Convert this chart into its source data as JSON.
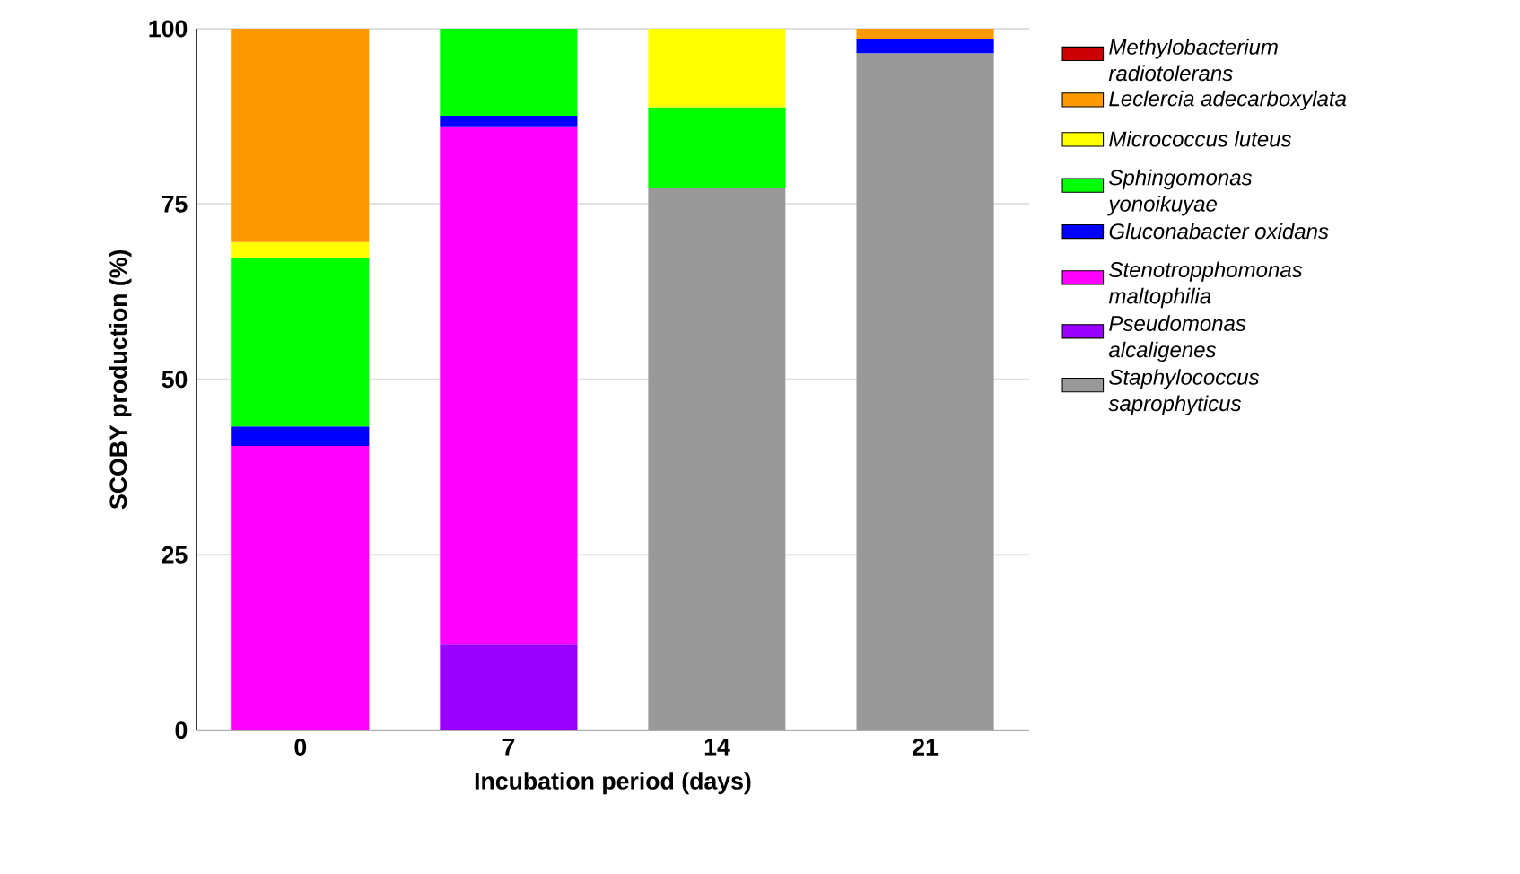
{
  "chart_data": {
    "type": "bar",
    "stacked": true,
    "xlabel": "Incubation period (days)",
    "ylabel": "SCOBY production (%)",
    "categories": [
      "0",
      "7",
      "14",
      "21"
    ],
    "ylim": [
      0,
      100
    ],
    "yticks": [
      0,
      25,
      50,
      75,
      100
    ],
    "grid": "y",
    "legend": "right",
    "series": [
      {
        "name": "Staphylococcus saprophyticus",
        "color": "#999999",
        "values": [
          null,
          null,
          77.3,
          96.5
        ]
      },
      {
        "name": "Pseudomonas alcaligenes",
        "color": "#9900ff",
        "values": [
          null,
          12.2,
          null,
          null
        ]
      },
      {
        "name": "Stenotropphomonas maltophilia",
        "color": "#ff00ff",
        "values": [
          40.5,
          73.9,
          null,
          null
        ]
      },
      {
        "name": "Gluconabacter oxidans",
        "color": "#0000ff",
        "values": [
          2.8,
          1.5,
          null,
          2
        ]
      },
      {
        "name": "Sphingomonas yonoikuyae",
        "color": "#00ff00",
        "values": [
          24,
          12.4,
          11.5,
          null
        ]
      },
      {
        "name": "Micrococcus luteus",
        "color": "#ffff00",
        "values": [
          2.3,
          null,
          11.2,
          null
        ]
      },
      {
        "name": "Leclercia adecarboxylata",
        "color": "#ff9900",
        "values": [
          30.4,
          null,
          null,
          1.5
        ]
      },
      {
        "name": "Methylobacterium radiotolerans",
        "color": "#cc0000",
        "values": [
          null,
          null,
          null,
          null
        ]
      }
    ]
  }
}
